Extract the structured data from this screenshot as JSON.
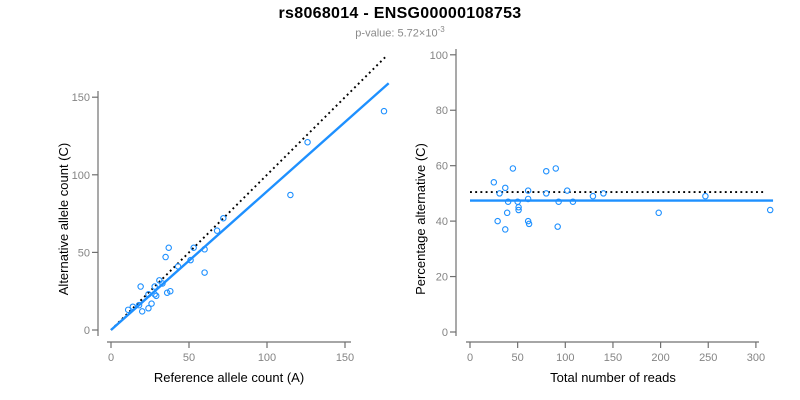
{
  "page": {
    "title": "rs8068014 - ENSG00000108753",
    "subtitle": {
      "base": "p-value: 5.72×10",
      "exponent": "-3"
    }
  },
  "colors": {
    "point_blue": "#1E90FF",
    "regression_blue": "#1E90FF",
    "dotted_black": "#000000",
    "axis_line": "#707070",
    "tick_label": "#848484",
    "axis_title": "#000000",
    "subtitle_gray": "#8a8a8a",
    "background": "#ffffff"
  },
  "chart_data": [
    {
      "id": "left",
      "type": "scatter",
      "xlabel": "Reference allele count (A)",
      "ylabel": "Alternative allele count (C)",
      "xlim": [
        0,
        178
      ],
      "ylim": [
        0,
        176
      ],
      "x_ticks": [
        0,
        50,
        100,
        150
      ],
      "y_ticks": [
        0,
        50,
        100,
        150
      ],
      "grid": false,
      "legend": "none",
      "marker": "open-circle",
      "points": [
        [
          11,
          13
        ],
        [
          14,
          15
        ],
        [
          18,
          16
        ],
        [
          20,
          12
        ],
        [
          24,
          14
        ],
        [
          26,
          17
        ],
        [
          19,
          28
        ],
        [
          24,
          23
        ],
        [
          28,
          23
        ],
        [
          29,
          22
        ],
        [
          28,
          28
        ],
        [
          31,
          32
        ],
        [
          33,
          30
        ],
        [
          36,
          24
        ],
        [
          38,
          25
        ],
        [
          35,
          47
        ],
        [
          37,
          53
        ],
        [
          43,
          41
        ],
        [
          51,
          45
        ],
        [
          53,
          53
        ],
        [
          60,
          52
        ],
        [
          60,
          37
        ],
        [
          68,
          64
        ],
        [
          72,
          72
        ],
        [
          115,
          87
        ],
        [
          126,
          121
        ],
        [
          175,
          141
        ]
      ],
      "lines": [
        {
          "name": "identity-line",
          "style": "dotted",
          "color": "#000000",
          "from": [
            0,
            0
          ],
          "to": [
            176,
            176
          ]
        },
        {
          "name": "regression-line",
          "style": "solid",
          "color": "#1E90FF",
          "from": [
            0,
            0
          ],
          "to": [
            178,
            159
          ]
        }
      ]
    },
    {
      "id": "right",
      "type": "scatter",
      "xlabel": "Total number of reads",
      "ylabel": "Percentage alternative (C)",
      "xlim": [
        0,
        318
      ],
      "ylim": [
        0,
        100
      ],
      "x_ticks": [
        0,
        50,
        100,
        150,
        200,
        250,
        300
      ],
      "y_ticks": [
        0,
        20,
        40,
        60,
        80,
        100
      ],
      "grid": false,
      "legend": "none",
      "marker": "open-circle",
      "points": [
        [
          25,
          54
        ],
        [
          45,
          59
        ],
        [
          31,
          50
        ],
        [
          37,
          52
        ],
        [
          29,
          40
        ],
        [
          39,
          43
        ],
        [
          37,
          37
        ],
        [
          40,
          47
        ],
        [
          50,
          47
        ],
        [
          51,
          45
        ],
        [
          51,
          44
        ],
        [
          61,
          51
        ],
        [
          61,
          48
        ],
        [
          61,
          40
        ],
        [
          62,
          39
        ],
        [
          80,
          58
        ],
        [
          90,
          59
        ],
        [
          80,
          50
        ],
        [
          93,
          47
        ],
        [
          92,
          38
        ],
        [
          102,
          51
        ],
        [
          108,
          47
        ],
        [
          129,
          49
        ],
        [
          140,
          50
        ],
        [
          198,
          43
        ],
        [
          247,
          49
        ],
        [
          315,
          44
        ]
      ],
      "lines": [
        {
          "name": "null-line",
          "style": "dotted",
          "color": "#000000",
          "from": [
            0,
            50.5
          ],
          "to": [
            311,
            50.5
          ]
        },
        {
          "name": "mean-line",
          "style": "solid",
          "color": "#1E90FF",
          "from": [
            0,
            47.4
          ],
          "to": [
            318,
            47.4
          ]
        }
      ]
    }
  ]
}
